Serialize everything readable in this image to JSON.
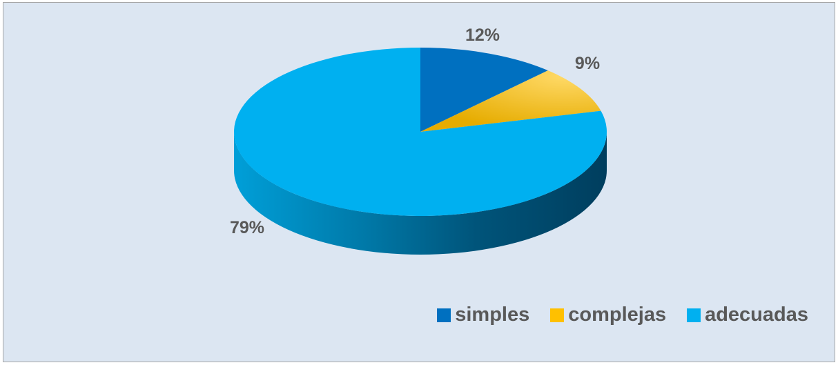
{
  "chart_data": {
    "type": "pie",
    "title": "",
    "style": "3d",
    "legend_position": "bottom-right",
    "slices": [
      {
        "label": "simples",
        "value": 12,
        "value_label": "12%",
        "color": "#0070c0"
      },
      {
        "label": "complejas",
        "value": 9,
        "value_label": "9%",
        "color": "#ffc000"
      },
      {
        "label": "adecuadas",
        "value": 79,
        "value_label": "79%",
        "color": "#00b0f0"
      }
    ]
  }
}
